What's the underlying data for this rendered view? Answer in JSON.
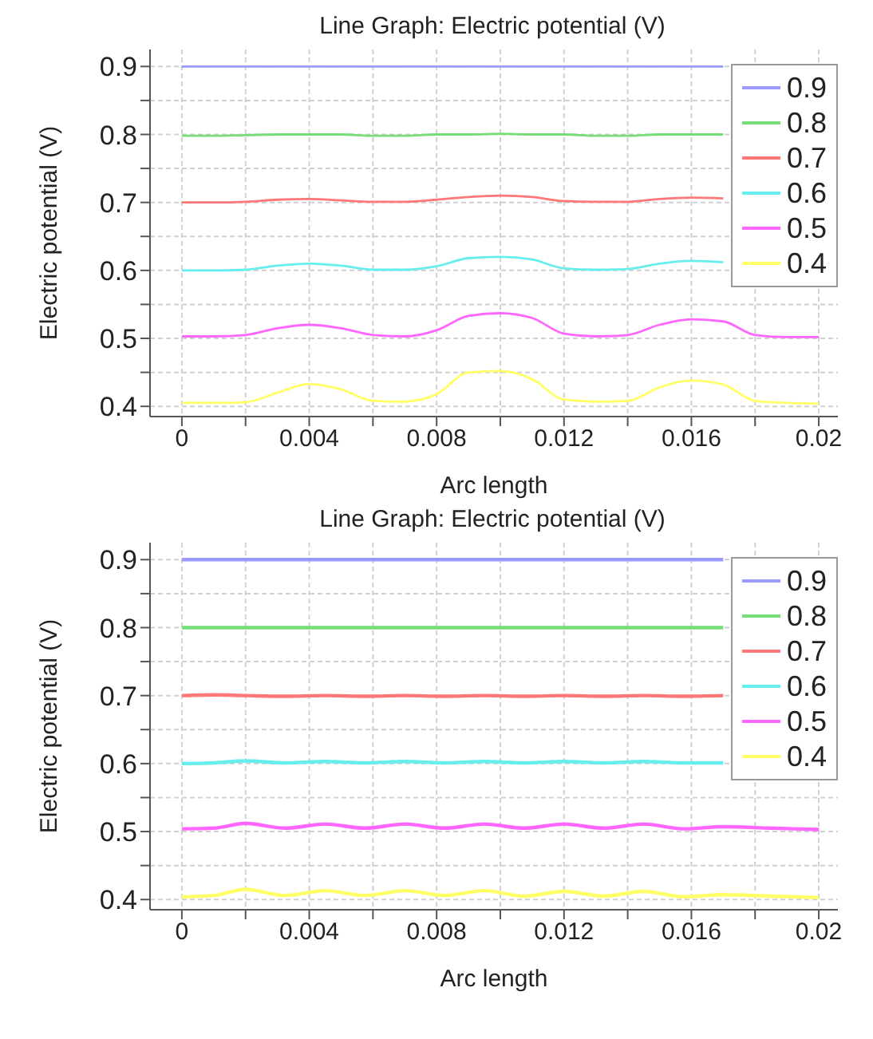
{
  "chart_data": [
    {
      "type": "line",
      "title": "Line Graph: Electric potential (V)",
      "xlabel": "Arc length",
      "ylabel": "Electric potential (V)",
      "x": [
        0,
        0.001,
        0.002,
        0.003,
        0.004,
        0.005,
        0.006,
        0.007,
        0.008,
        0.009,
        0.01,
        0.011,
        0.012,
        0.013,
        0.014,
        0.015,
        0.016,
        0.017,
        0.018,
        0.019,
        0.02
      ],
      "series": [
        {
          "name": "0.9",
          "color": "#9999ff",
          "values": [
            0.9,
            0.9,
            0.9,
            0.9,
            0.9,
            0.9,
            0.9,
            0.9,
            0.9,
            0.9,
            0.9,
            0.9,
            0.9,
            0.9,
            0.9,
            0.9,
            0.9,
            0.9,
            null,
            null,
            null
          ]
        },
        {
          "name": "0.8",
          "color": "#77dd77",
          "values": [
            0.798,
            0.798,
            0.799,
            0.8,
            0.8,
            0.8,
            0.798,
            0.798,
            0.8,
            0.8,
            0.801,
            0.8,
            0.8,
            0.798,
            0.798,
            0.8,
            0.8,
            0.8,
            null,
            null,
            null
          ]
        },
        {
          "name": "0.7",
          "color": "#ff7777",
          "values": [
            0.7,
            0.7,
            0.701,
            0.704,
            0.705,
            0.703,
            0.701,
            0.701,
            0.704,
            0.708,
            0.71,
            0.708,
            0.702,
            0.701,
            0.701,
            0.705,
            0.707,
            0.706,
            null,
            null,
            null
          ]
        },
        {
          "name": "0.6",
          "color": "#66eeee",
          "values": [
            0.6,
            0.6,
            0.601,
            0.607,
            0.61,
            0.607,
            0.601,
            0.601,
            0.606,
            0.618,
            0.62,
            0.616,
            0.603,
            0.601,
            0.602,
            0.61,
            0.614,
            0.612,
            null,
            null,
            null
          ]
        },
        {
          "name": "0.5",
          "color": "#ff66ff",
          "values": [
            0.503,
            0.503,
            0.505,
            0.515,
            0.52,
            0.515,
            0.505,
            0.503,
            0.512,
            0.533,
            0.537,
            0.53,
            0.507,
            0.503,
            0.505,
            0.52,
            0.528,
            0.525,
            0.505,
            0.502,
            0.502
          ]
        },
        {
          "name": "0.4",
          "color": "#ffff66",
          "values": [
            0.405,
            0.405,
            0.406,
            0.42,
            0.433,
            0.425,
            0.408,
            0.407,
            0.418,
            0.45,
            0.452,
            0.44,
            0.41,
            0.407,
            0.408,
            0.428,
            0.438,
            0.432,
            0.408,
            0.405,
            0.404
          ]
        }
      ],
      "xlim": [
        -0.001,
        0.0206
      ],
      "ylim": [
        0.385,
        0.925
      ],
      "xticks": [
        0,
        {
          "value": 0.002,
          "label": null
        },
        0.004,
        {
          "value": 0.006,
          "label": null
        },
        0.008,
        {
          "value": 0.01,
          "label": null
        },
        0.012,
        {
          "value": 0.014,
          "label": null
        },
        0.016,
        {
          "value": 0.018,
          "label": null
        },
        0.02
      ],
      "yticks": [
        0.4,
        {
          "value": 0.45,
          "label": null
        },
        0.5,
        {
          "value": 0.55,
          "label": null
        },
        0.6,
        {
          "value": 0.65,
          "label": null
        },
        0.7,
        {
          "value": 0.75,
          "label": null
        },
        0.8,
        {
          "value": 0.85,
          "label": null
        },
        0.9
      ],
      "grid": true,
      "legend": "top right",
      "marker": "none",
      "line_style": "solid"
    },
    {
      "type": "line",
      "title": "Line Graph: Electric potential (V)",
      "xlabel": "Arc length",
      "ylabel": "Electric potential (V)",
      "x": [
        0,
        0.001,
        0.002,
        0.00325,
        0.0045,
        0.00575,
        0.007,
        0.00825,
        0.0095,
        0.01075,
        0.012,
        0.01325,
        0.0145,
        0.01575,
        0.017,
        0.0185,
        0.02
      ],
      "series": [
        {
          "name": "0.9",
          "color": "#9999ff",
          "values": [
            0.9,
            0.9,
            0.9,
            0.9,
            0.9,
            0.9,
            0.9,
            0.9,
            0.9,
            0.9,
            0.9,
            0.9,
            0.9,
            0.9,
            0.9,
            null,
            null
          ]
        },
        {
          "name": "0.8",
          "color": "#77dd77",
          "values": [
            0.8,
            0.8,
            0.8,
            0.8,
            0.8,
            0.8,
            0.8,
            0.8,
            0.8,
            0.8,
            0.8,
            0.8,
            0.8,
            0.8,
            0.8,
            null,
            null
          ]
        },
        {
          "name": "0.7",
          "color": "#ff7777",
          "values": [
            0.7,
            0.701,
            0.7,
            0.699,
            0.7,
            0.699,
            0.7,
            0.699,
            0.7,
            0.699,
            0.7,
            0.699,
            0.7,
            0.699,
            0.7,
            null,
            null
          ]
        },
        {
          "name": "0.6",
          "color": "#66eeee",
          "values": [
            0.6,
            0.601,
            0.604,
            0.601,
            0.603,
            0.601,
            0.603,
            0.601,
            0.603,
            0.601,
            0.603,
            0.601,
            0.603,
            0.601,
            0.601,
            null,
            null
          ]
        },
        {
          "name": "0.5",
          "color": "#ff66ff",
          "values": [
            0.504,
            0.505,
            0.512,
            0.505,
            0.511,
            0.505,
            0.511,
            0.505,
            0.511,
            0.505,
            0.511,
            0.505,
            0.511,
            0.504,
            0.507,
            0.505,
            0.503
          ]
        },
        {
          "name": "0.4",
          "color": "#ffff66",
          "values": [
            0.404,
            0.406,
            0.415,
            0.406,
            0.413,
            0.406,
            0.413,
            0.406,
            0.413,
            0.405,
            0.412,
            0.405,
            0.412,
            0.404,
            0.407,
            0.405,
            0.403
          ]
        }
      ],
      "xlim": [
        -0.001,
        0.0206
      ],
      "ylim": [
        0.385,
        0.925
      ],
      "xticks": [
        0,
        {
          "value": 0.002,
          "label": null
        },
        0.004,
        {
          "value": 0.006,
          "label": null
        },
        0.008,
        {
          "value": 0.01,
          "label": null
        },
        0.012,
        {
          "value": 0.014,
          "label": null
        },
        0.016,
        {
          "value": 0.018,
          "label": null
        },
        0.02
      ],
      "yticks": [
        0.4,
        {
          "value": 0.45,
          "label": null
        },
        0.5,
        {
          "value": 0.55,
          "label": null
        },
        0.6,
        {
          "value": 0.65,
          "label": null
        },
        0.7,
        {
          "value": 0.75,
          "label": null
        },
        0.8,
        {
          "value": 0.85,
          "label": null
        },
        0.9
      ],
      "grid": true,
      "legend": "top right",
      "marker": "none",
      "line_style": "solid"
    }
  ]
}
